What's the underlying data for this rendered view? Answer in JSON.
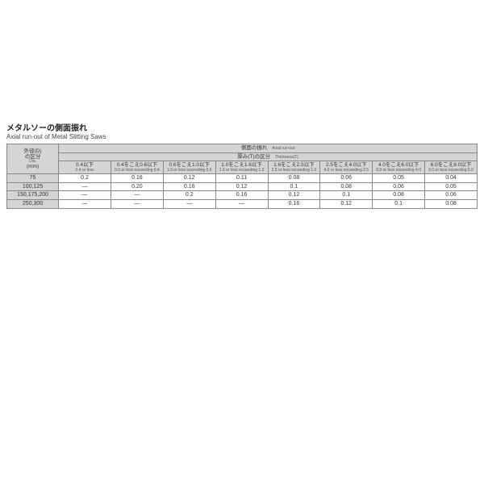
{
  "title": {
    "jp": "メタルソーの側面振れ",
    "en": "Axial run-out of Metal Slitting Saws"
  },
  "header": {
    "dia_jp1": "外径(D)",
    "dia_jp2": "の区分",
    "dia_en1": "Dia.",
    "dia_unit": "(mm)",
    "axial_jp": "側面の振れ",
    "axial_en": "Axial run-out",
    "thick_jp": "厚み(T)の区分",
    "thick_en": "Thickness(T)"
  },
  "cols": [
    {
      "jp": "0.4以下",
      "en": "0.4 or less"
    },
    {
      "jp": "0.4をこえ0.6以下",
      "en": "0.6 or less exceeding 0.4"
    },
    {
      "jp": "0.6をこえ1.0以下",
      "en": "1.0 or less exceeding 0.6"
    },
    {
      "jp": "1.0をこえ1.6以下",
      "en": "1.6 or less exceeding 1.0"
    },
    {
      "jp": "1.6をこえ2.5以下",
      "en": "2.5 or less exceeding 1.6"
    },
    {
      "jp": "2.5をこえ4.0以下",
      "en": "4.0 or less exceeding 2.5"
    },
    {
      "jp": "4.0をこえ6.0以下",
      "en": "6.0 or less exceeding 4.0"
    },
    {
      "jp": "6.0をこえ8.0以下",
      "en": "8.0 or less exceeding 6.0"
    }
  ],
  "rows": [
    {
      "label": "75",
      "v": [
        "0.2",
        "0.16",
        "0.12",
        "0.11",
        "0.08",
        "0.06",
        "0.05",
        "0.04"
      ]
    },
    {
      "label": "100,125",
      "v": [
        "—",
        "0.20",
        "0.16",
        "0.12",
        "0.1",
        "0.08",
        "0.06",
        "0.05"
      ]
    },
    {
      "label": "150,175,200",
      "v": [
        "—",
        "—",
        "0.2",
        "0.16",
        "0.12",
        "0.1",
        "0.08",
        "0.06"
      ]
    },
    {
      "label": "250,300",
      "v": [
        "—",
        "—",
        "—",
        "—",
        "0.16",
        "0.12",
        "0.1",
        "0.08"
      ]
    }
  ],
  "style": {
    "header_bg": "#d4d6d3",
    "border_color": "#888888",
    "page_bg": "#ffffff",
    "text_color": "#333333",
    "title_fontsize_pt": 10,
    "subtitle_fontsize_pt": 8,
    "cell_fontsize_pt": 7,
    "subheader_en_fontsize_pt": 5
  }
}
